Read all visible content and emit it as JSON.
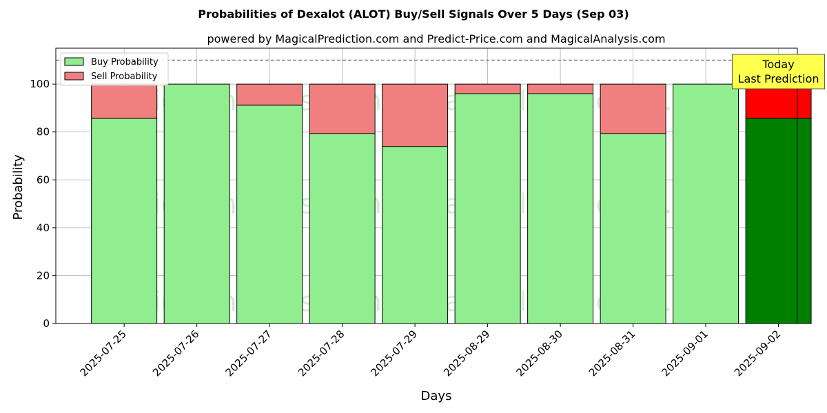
{
  "chart_data": {
    "type": "bar",
    "stacked": true,
    "title": "Probabilities of Dexalot (ALOT) Buy/Sell Signals Over 5 Days (Sep 03)",
    "subtitle": "powered by MagicalPrediction.com and Predict-Price.com and MagicalAnalysis.com",
    "xlabel": "Days",
    "ylabel": "Probability",
    "ylim": [
      0,
      115
    ],
    "yticks": [
      0,
      20,
      40,
      60,
      80,
      100
    ],
    "grid": true,
    "reference_line": 110,
    "categories": [
      "2025-07-25",
      "2025-07-26",
      "2025-07-27",
      "2025-07-28",
      "2025-07-29",
      "2025-08-29",
      "2025-08-30",
      "2025-08-31",
      "2025-09-01",
      "2025-09-02"
    ],
    "series": [
      {
        "name": "Buy Probability",
        "color": "#90ee90",
        "highlight_color": "#008000",
        "values": [
          85.7,
          100,
          91.2,
          79.3,
          74.0,
          96.0,
          96.0,
          79.3,
          100,
          85.7
        ]
      },
      {
        "name": "Sell Probability",
        "color": "#f08080",
        "highlight_color": "#ff0000",
        "values": [
          14.3,
          0,
          8.8,
          20.7,
          26.0,
          4.0,
          4.0,
          20.7,
          0,
          14.3
        ]
      }
    ],
    "highlight_index": 9,
    "legend_position": "top-left",
    "annotation": {
      "lines": [
        "Today",
        "Last Prediction"
      ],
      "color": "#ffff4d"
    },
    "watermarks": [
      "MagicalAnalysis.com",
      "MagicalPrediction.com"
    ]
  }
}
